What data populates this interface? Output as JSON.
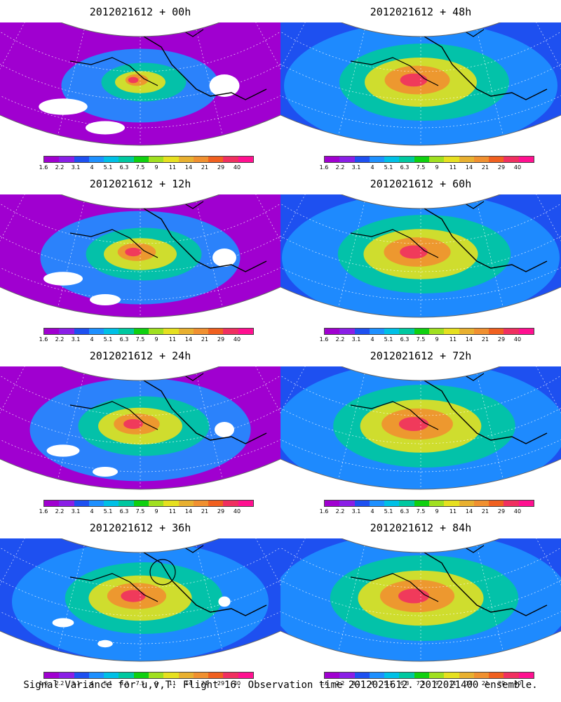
{
  "colorbar": {
    "labels": [
      "1.6",
      "2.2",
      "3.1",
      "4",
      "5.1",
      "6.3",
      "7.5",
      "9",
      "11",
      "14",
      "21",
      "29",
      "40"
    ],
    "colors": [
      "#a000d0",
      "#8a1fe6",
      "#1e50f0",
      "#1e90ff",
      "#00c0e6",
      "#00c8a0",
      "#10d010",
      "#a0e020",
      "#e6e020",
      "#e8b030",
      "#f09030",
      "#f06020",
      "#f03060",
      "#ff1090"
    ]
  },
  "panels": [
    {
      "title": "2012021612 + 00h",
      "level": 0.15,
      "holes": 0.55
    },
    {
      "title": "2012021612 + 48h",
      "level": 0.7,
      "holes": 0.05
    },
    {
      "title": "2012021612 + 12h",
      "level": 0.35,
      "holes": 0.4
    },
    {
      "title": "2012021612 + 60h",
      "level": 0.72,
      "holes": 0.03
    },
    {
      "title": "2012021612 + 24h",
      "level": 0.45,
      "holes": 0.3
    },
    {
      "title": "2012021612 + 72h",
      "level": 0.78,
      "holes": 0.02
    },
    {
      "title": "2012021612 + 36h",
      "level": 0.62,
      "holes": 0.12
    },
    {
      "title": "2012021612 + 84h",
      "level": 0.82,
      "holes": 0.01
    }
  ],
  "caption": "Signal Variance for u,v,T. Flight 16. Observation time 2012021612. 2012021400 ensemble."
}
